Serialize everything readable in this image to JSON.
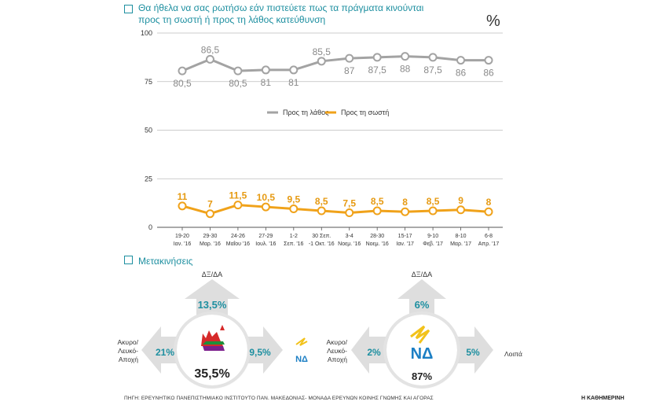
{
  "header": {
    "title_line1": "Θα ήθελα να σας ρωτήσω εάν πιστεύετε πως τα πράγματα κινούνται",
    "title_line2": "προς τη σωστή ή προς τη λάθος κατεύθυνση",
    "unit": "%"
  },
  "chart_data": {
    "type": "line",
    "categories": [
      [
        "19-20",
        "Ιαν. '16"
      ],
      [
        "29-30",
        "Μαρ. '16"
      ],
      [
        "24-26",
        "Μαΐου '16"
      ],
      [
        "27-29",
        "Ιουλ. '16"
      ],
      [
        "1-2",
        "Σεπ. '16"
      ],
      [
        "30 Σεπ.",
        "-1 Οκτ. '16"
      ],
      [
        "3-4",
        "Νοεμ. '16"
      ],
      [
        "28-30",
        "Νοεμ. '16"
      ],
      [
        "15-17",
        "Ιαν. '17"
      ],
      [
        "9-10",
        "Φεβ. '17"
      ],
      [
        "8-10",
        "Μαρ. '17"
      ],
      [
        "6-8",
        "Απρ. '17"
      ]
    ],
    "series": [
      {
        "name": "Προς τη λάθος",
        "color": "#a3a3a3",
        "values": [
          80.5,
          86.5,
          80.5,
          81,
          81,
          85.5,
          87,
          87.5,
          88,
          87.5,
          86,
          86
        ],
        "labels": [
          "80,5",
          "86,5",
          "80,5",
          "81",
          "81",
          "85,5",
          "87",
          "87,5",
          "88",
          "87,5",
          "86",
          "86"
        ],
        "label_pos": [
          "below",
          "above",
          "below",
          "below",
          "below",
          "above",
          "below",
          "below",
          "below",
          "below",
          "below",
          "below"
        ]
      },
      {
        "name": "Προς τη σωστή",
        "color": "#f0a21a",
        "values": [
          11,
          7,
          11.5,
          10.5,
          9.5,
          8.5,
          7.5,
          8.5,
          8,
          8.5,
          9,
          8
        ],
        "labels": [
          "11",
          "7",
          "11,5",
          "10,5",
          "9,5",
          "8,5",
          "7,5",
          "8,5",
          "8",
          "8,5",
          "9",
          "8"
        ],
        "label_pos": [
          "above",
          "above",
          "above",
          "above",
          "above",
          "above",
          "above",
          "above",
          "above",
          "above",
          "above",
          "above"
        ]
      }
    ],
    "yticks": [
      0,
      25,
      50,
      75,
      100
    ],
    "ylim": [
      0,
      100
    ],
    "grid": true,
    "legend": "middle"
  },
  "transitions": {
    "title": "Μετακινήσεις",
    "left": {
      "center_value": "35,5%",
      "up_label": "ΔΞ/ΔΑ",
      "up_value": "13,5%",
      "left_label": [
        "Ακυρο/",
        "Λευκό-",
        "Αποχή"
      ],
      "left_value": "21%",
      "right_value": "9,5%",
      "right_logo_text": "ΝΔ",
      "colors": {
        "logo_red": "#d62a2a",
        "logo_green": "#1f8f3a",
        "arrow": "#dedede",
        "value": "#1d8fa0"
      }
    },
    "right": {
      "center_value": "87%",
      "logo_text": "ΝΔ",
      "up_label": "ΔΞ/ΔΑ",
      "up_value": "6%",
      "left_label": [
        "Ακυρο/",
        "Λευκό-",
        "Αποχή"
      ],
      "left_value": "2%",
      "right_label": "Λοιπά",
      "right_value": "5%",
      "colors": {
        "logo_blue": "#1c7fc4",
        "logo_yellow": "#f2c21b"
      }
    }
  },
  "footer": {
    "source": "ΠΗΓΗ: ΕΡΕΥΝΗΤΙΚΟ ΠΑΝΕΠΙΣΤΗΜΙΑΚΟ ΙΝΣΤΙΤΟΥΤΟ ΠΑΝ. ΜΑΚΕΔΟΝΙΑΣ- ΜΟΝΑΔΑ ΕΡΕΥΝΩΝ ΚΟΙΝΗΣ ΓΝΩΜΗΣ ΚΑΙ ΑΓΟΡΑΣ",
    "brand": "Η ΚΑΘΗΜΕΡΙΝΗ"
  }
}
